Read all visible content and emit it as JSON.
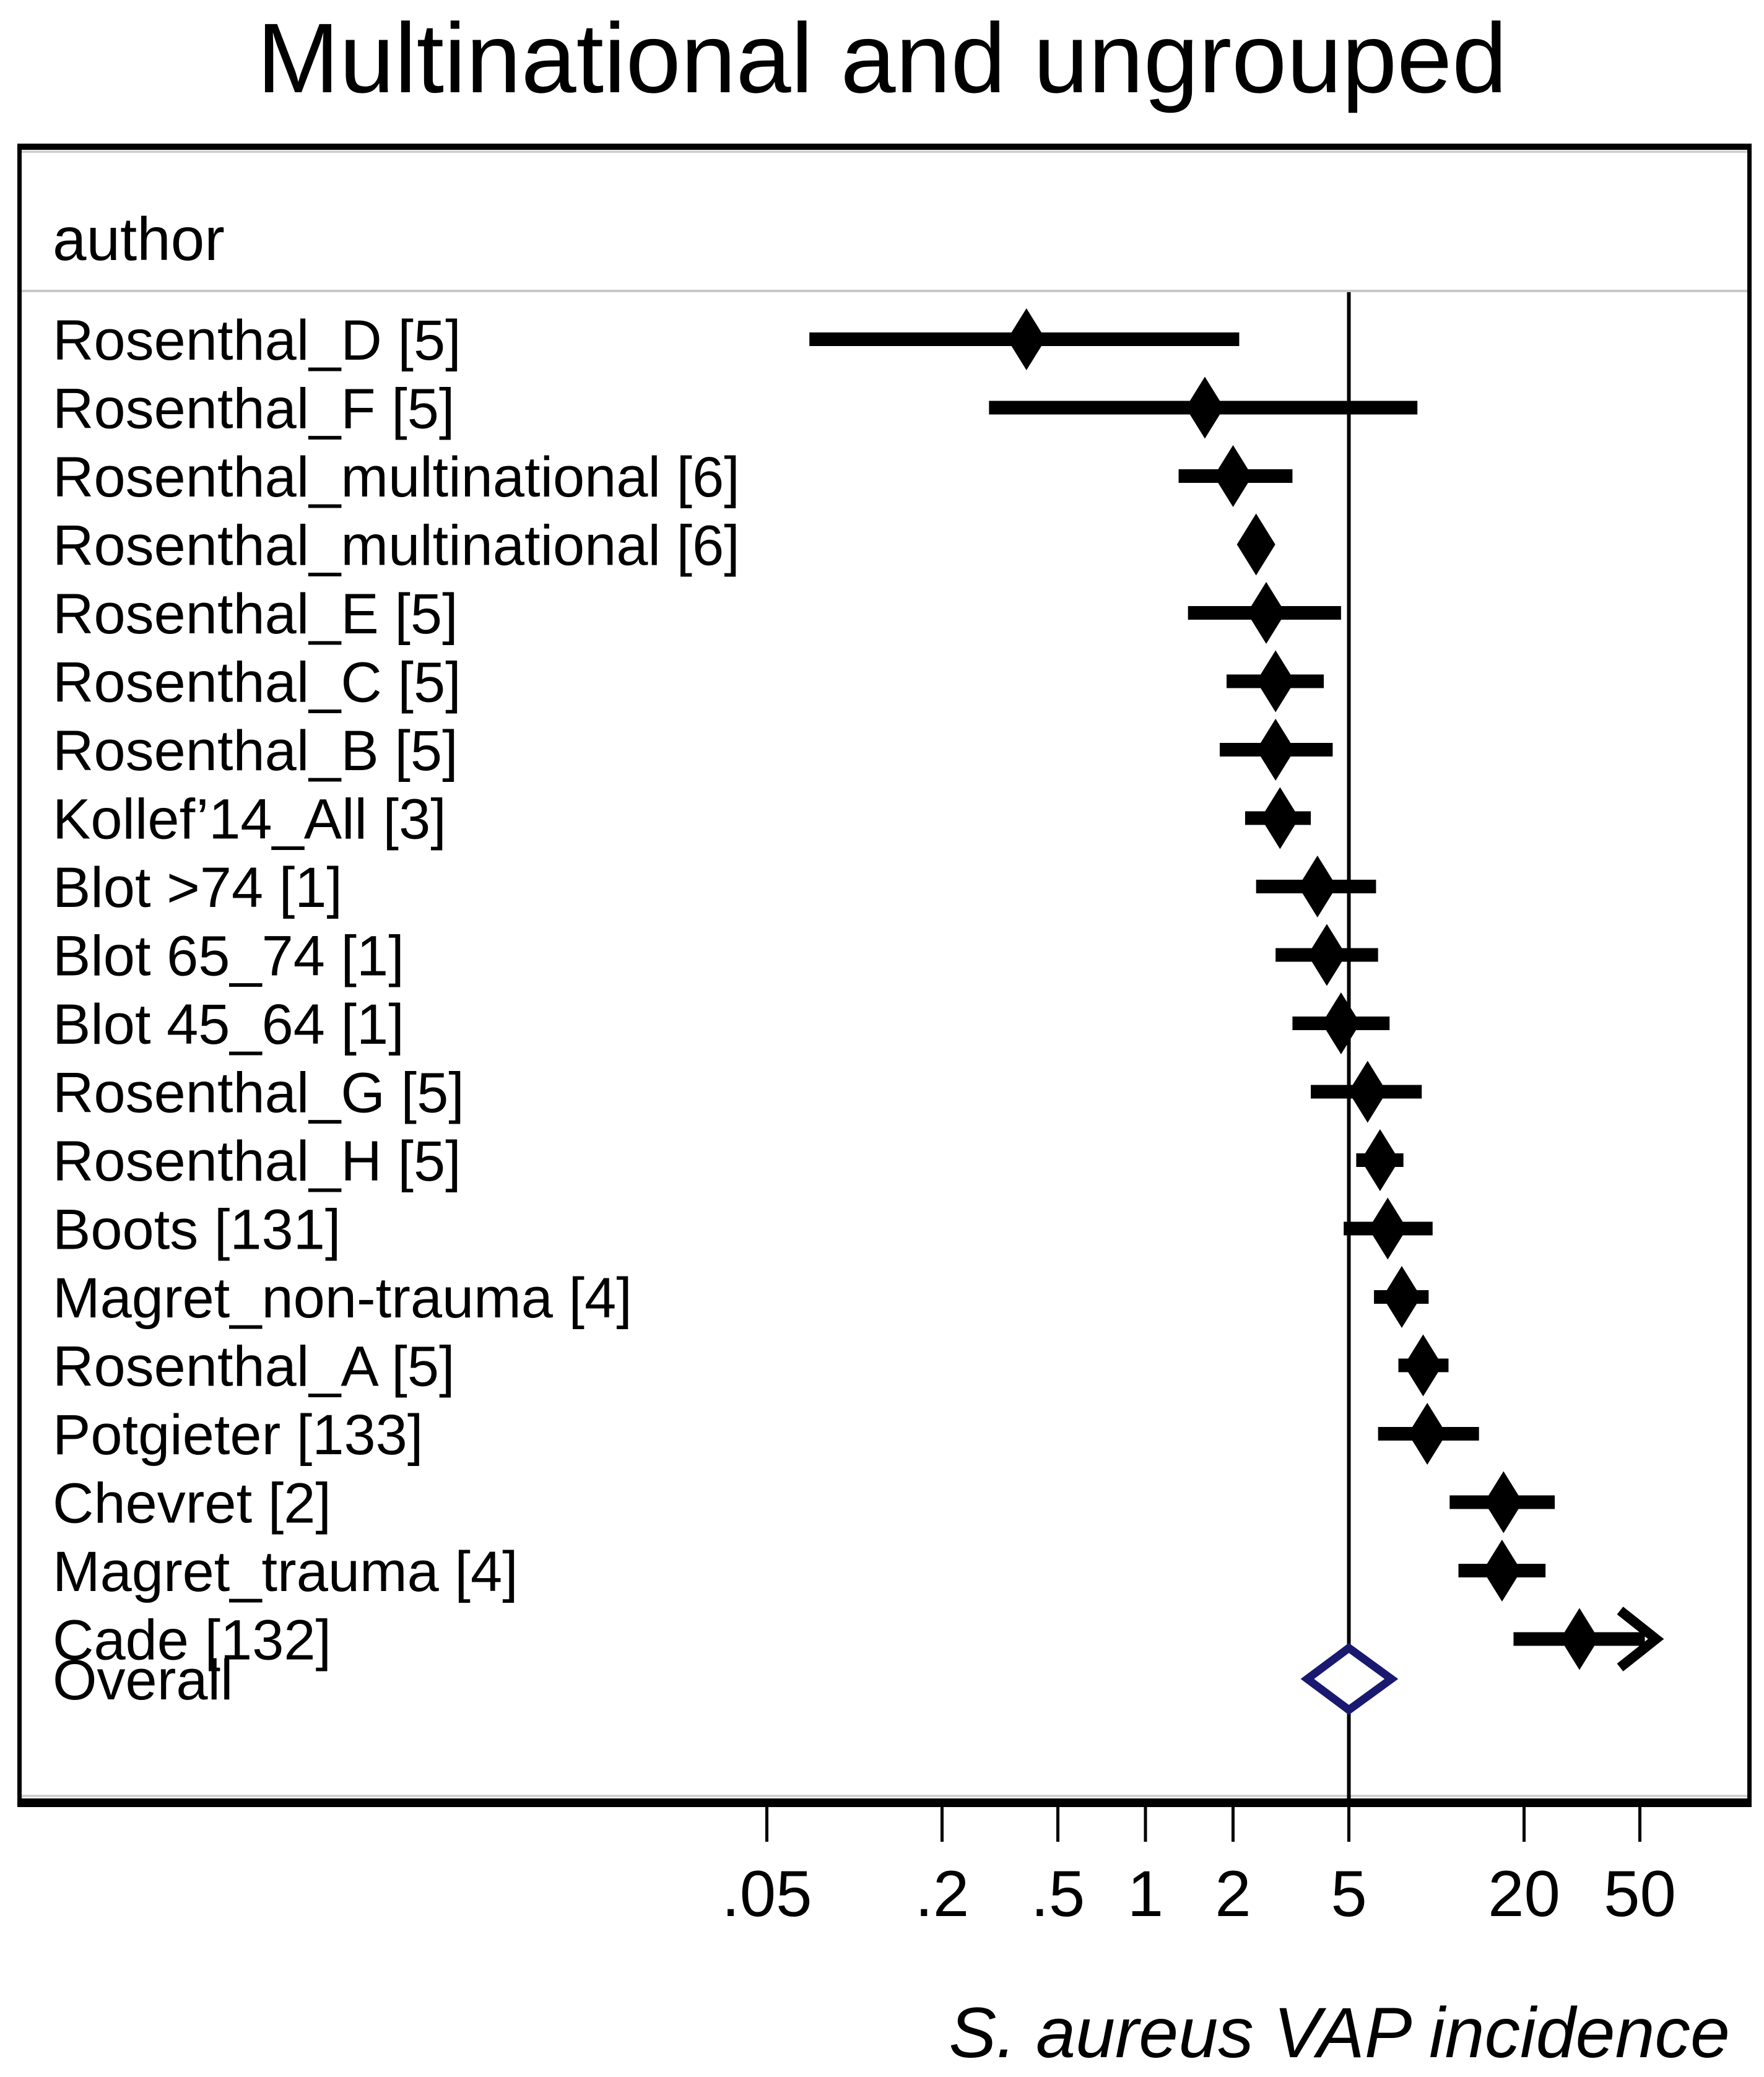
{
  "column_header": "author",
  "colors": {
    "marker": "#000000",
    "reference_line": "#000000",
    "overall_diamond_stroke": "#191970",
    "overall_diamond_fill": "#ffffff",
    "header_separator": "#c8c8c8",
    "frame": "#000000"
  },
  "chart_data": {
    "type": "scatter",
    "subtype": "forest-plot",
    "title": "Multinational and ungrouped",
    "xlabel": "S. aureus VAP incidence",
    "x_scale": "log10",
    "x_axis_range": [
      0.03,
      120
    ],
    "reference_line": 5,
    "grid": false,
    "legend": false,
    "x_ticks": [
      {
        "label": ".05",
        "value": 0.05
      },
      {
        "label": ".2",
        "value": 0.2
      },
      {
        "label": ".5",
        "value": 0.5
      },
      {
        "label": "1",
        "value": 1
      },
      {
        "label": "2",
        "value": 2
      },
      {
        "label": "5",
        "value": 5
      },
      {
        "label": "20",
        "value": 20
      },
      {
        "label": "50",
        "value": 50
      }
    ],
    "studies": [
      {
        "label": "Rosenthal_D [5]",
        "estimate": 0.39,
        "ci_low": 0.07,
        "ci_high": 2.1,
        "ci_high_truncated": false
      },
      {
        "label": "Rosenthal_F [5]",
        "estimate": 1.6,
        "ci_low": 0.29,
        "ci_high": 8.6,
        "ci_high_truncated": false
      },
      {
        "label": "Rosenthal_multinational [6]",
        "estimate": 2.0,
        "ci_low": 1.3,
        "ci_high": 3.2,
        "ci_high_truncated": false
      },
      {
        "label": "Rosenthal_multinational [6]",
        "estimate": 2.4,
        "ci_low": 2.2,
        "ci_high": 2.6,
        "ci_high_truncated": false
      },
      {
        "label": "Rosenthal_E [5]",
        "estimate": 2.6,
        "ci_low": 1.4,
        "ci_high": 4.7,
        "ci_high_truncated": false
      },
      {
        "label": "Rosenthal_C [5]",
        "estimate": 2.8,
        "ci_low": 1.9,
        "ci_high": 4.1,
        "ci_high_truncated": false
      },
      {
        "label": "Rosenthal_B [5]",
        "estimate": 2.8,
        "ci_low": 1.8,
        "ci_high": 4.4,
        "ci_high_truncated": false
      },
      {
        "label": "Kollef’14_All [3]",
        "estimate": 2.9,
        "ci_low": 2.2,
        "ci_high": 3.7,
        "ci_high_truncated": false
      },
      {
        "label": "Blot >74 [1]",
        "estimate": 3.9,
        "ci_low": 2.4,
        "ci_high": 6.2,
        "ci_high_truncated": false
      },
      {
        "label": "Blot 65_74 [1]",
        "estimate": 4.2,
        "ci_low": 2.8,
        "ci_high": 6.3,
        "ci_high_truncated": false
      },
      {
        "label": "Blot 45_64 [1]",
        "estimate": 4.7,
        "ci_low": 3.2,
        "ci_high": 6.9,
        "ci_high_truncated": false
      },
      {
        "label": "Rosenthal_G [5]",
        "estimate": 5.8,
        "ci_low": 3.7,
        "ci_high": 8.9,
        "ci_high_truncated": false
      },
      {
        "label": "Rosenthal_H [5]",
        "estimate": 6.4,
        "ci_low": 5.3,
        "ci_high": 7.7,
        "ci_high_truncated": false
      },
      {
        "label": "Boots [131]",
        "estimate": 6.8,
        "ci_low": 4.8,
        "ci_high": 9.7,
        "ci_high_truncated": false
      },
      {
        "label": "Magret_non-trauma [4]",
        "estimate": 7.6,
        "ci_low": 6.1,
        "ci_high": 9.4,
        "ci_high_truncated": false
      },
      {
        "label": "Rosenthal_A [5]",
        "estimate": 9.0,
        "ci_low": 7.4,
        "ci_high": 11.0,
        "ci_high_truncated": false
      },
      {
        "label": "Potgieter [133]",
        "estimate": 9.3,
        "ci_low": 6.3,
        "ci_high": 14.0,
        "ci_high_truncated": false
      },
      {
        "label": "Chevret [2]",
        "estimate": 17.0,
        "ci_low": 11.1,
        "ci_high": 25.5,
        "ci_high_truncated": false
      },
      {
        "label": "Magret_trauma [4]",
        "estimate": 16.8,
        "ci_low": 11.9,
        "ci_high": 23.7,
        "ci_high_truncated": false
      },
      {
        "label": "Cade [132]",
        "estimate": 31.0,
        "ci_low": 18.4,
        "ci_high": 52.0,
        "ci_high_truncated": true
      }
    ],
    "overall": {
      "label": "Overall",
      "estimate": 5.0,
      "ci_low": 3.6,
      "ci_high": 7.0
    }
  }
}
